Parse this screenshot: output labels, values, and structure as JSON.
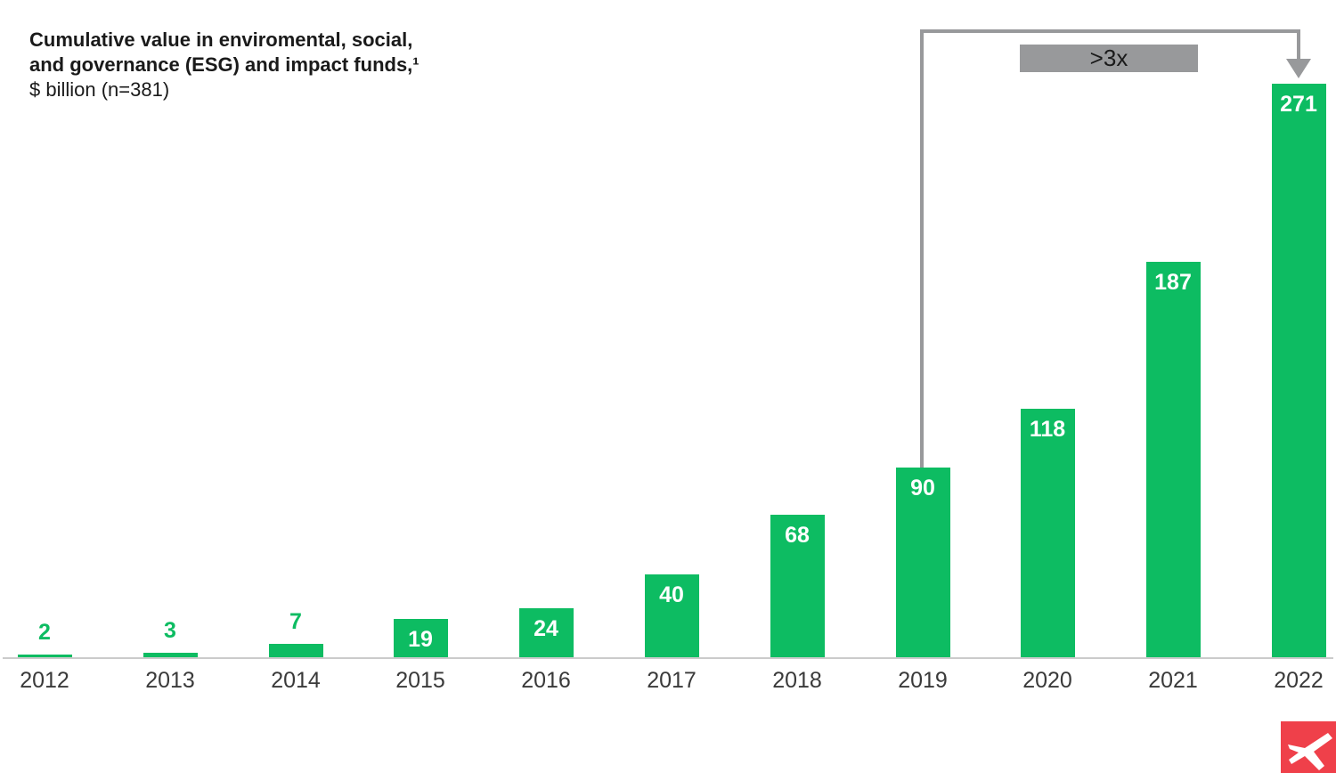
{
  "page": {
    "background": "#ffffff"
  },
  "title": {
    "line1": "Cumulative value in enviromental, social,",
    "line2": "and governance (ESG) and impact funds,¹",
    "line3": "$ billion (n=381)"
  },
  "chart_data": {
    "type": "bar",
    "title": "Cumulative value in enviromental, social, and governance (ESG) and impact funds,¹ $ billion (n=381)",
    "xlabel": "",
    "ylabel": "$ billion",
    "categories": [
      "2012",
      "2013",
      "2014",
      "2015",
      "2016",
      "2017",
      "2018",
      "2019",
      "2020",
      "2021",
      "2022"
    ],
    "values": [
      2,
      3,
      7,
      19,
      24,
      40,
      68,
      90,
      118,
      187,
      271
    ],
    "ylim": [
      0,
      280
    ],
    "grid": false,
    "legend": "none",
    "bar_labels": "every bar labeled; white label inside bar for values >= 19, green label above bar for values <= 7",
    "annotation": {
      "text": ">3x",
      "from_category": "2019",
      "to_category": "2022"
    }
  },
  "colors": {
    "bar_green": "#0dbc62",
    "value_label_inside": "#ffffff",
    "axis_line": "#cbcbcb",
    "bracket_gray": "#98999b",
    "ink": "#1a1a1a",
    "tick_label": "#3a3a3a",
    "logo_red": "#ef404a",
    "logo_mark": "#ffffff"
  },
  "logo": {
    "name": "xm-logo"
  }
}
